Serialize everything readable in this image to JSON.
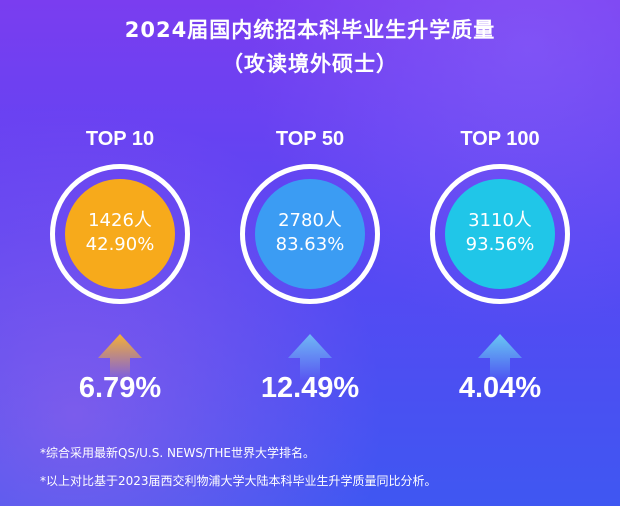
{
  "header": {
    "title_line1": "2024届国内统招本科毕业生升学质量",
    "title_line2": "（攻读境外硕士）"
  },
  "colors": {
    "top10": "#f7aa1b",
    "top50": "#3b9cf3",
    "top100": "#20c6e8",
    "arrow_top10": "#f5b134",
    "arrow_top50": "#6fb9f5",
    "arrow_top100": "#68c9f3"
  },
  "chart_data": {
    "type": "bar",
    "categories": [
      "TOP 10",
      "TOP 50",
      "TOP 100"
    ],
    "series": [
      {
        "values_label": "count",
        "values": [
          "1426人",
          "2780人",
          "3110人"
        ]
      },
      {
        "values_label": "percentage",
        "values": [
          "42.90%",
          "83.63%",
          "93.56%"
        ]
      },
      {
        "values_label": "growth",
        "values": [
          "6.79%",
          "12.49%",
          "4.04%"
        ]
      }
    ],
    "icons": [
      "up-arrow-icon",
      "up-arrow-icon",
      "up-arrow-icon"
    ]
  },
  "notes": {
    "line1": "*综合采用最新QS/U.S. NEWS/THE世界大学排名。",
    "line2": "*以上对比基于2023届西交利物浦大学大陆本科毕业生升学质量同比分析。"
  }
}
